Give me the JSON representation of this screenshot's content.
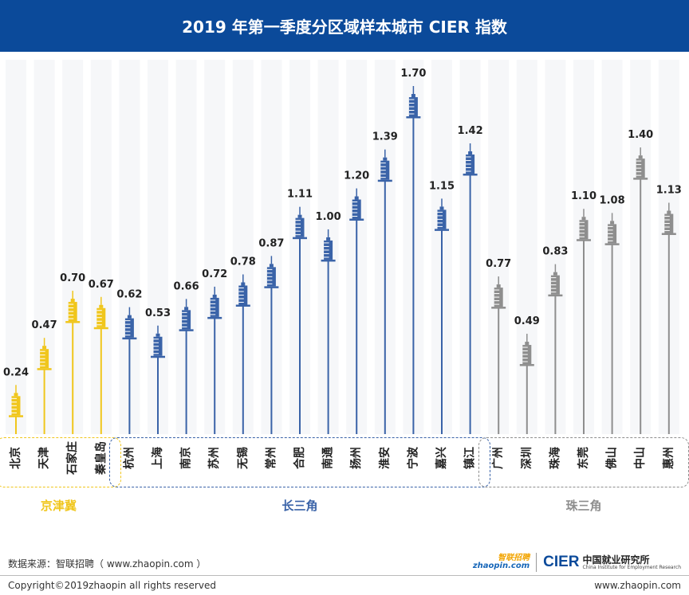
{
  "header": {
    "title": "2019 年第一季度分区域样本城市 CIER 指数"
  },
  "colors": {
    "header_bg": "#0b4a9a",
    "jjj": "#f0c61c",
    "csj": "#3a63a8",
    "zsj": "#8e8e8e"
  },
  "chart_data": {
    "type": "bar",
    "title": "2019 年第一季度分区域样本城市 CIER 指数",
    "ylim": [
      0,
      1.8
    ],
    "grid": false,
    "groups": [
      {
        "name": "京津冀",
        "color": "#f0c61c",
        "categories": [
          "北京",
          "天津",
          "石家庄",
          "秦皇岛"
        ],
        "values": [
          0.24,
          0.47,
          0.7,
          0.67
        ]
      },
      {
        "name": "长三角",
        "color": "#3a63a8",
        "categories": [
          "杭州",
          "上海",
          "南京",
          "苏州",
          "无锡",
          "常州",
          "合肥",
          "南通",
          "扬州",
          "淮安",
          "宁波",
          "嘉兴",
          "镇江"
        ],
        "values": [
          0.62,
          0.53,
          0.66,
          0.72,
          0.78,
          0.87,
          1.11,
          1.0,
          1.2,
          1.39,
          1.7,
          1.15,
          1.42
        ]
      },
      {
        "name": "珠三角",
        "color": "#8e8e8e",
        "categories": [
          "广州",
          "深圳",
          "珠海",
          "东莞",
          "佛山",
          "中山",
          "惠州"
        ],
        "values": [
          0.77,
          0.49,
          0.83,
          1.1,
          1.08,
          1.4,
          1.13
        ]
      }
    ]
  },
  "footer": {
    "source": "数据来源：智联招聘（ www.zhaopin.com ）",
    "copyright": "Copyright©2019zhaopin all rights reserved",
    "website": "www.zhaopin.com",
    "logo_zhaopin_top": "智联招聘",
    "logo_zhaopin_bottom": "zhaopin.com",
    "logo_cier": "CIER",
    "logo_cier_cn": "中国就业研究所",
    "logo_cier_en": "China Institute for Employment Research"
  }
}
